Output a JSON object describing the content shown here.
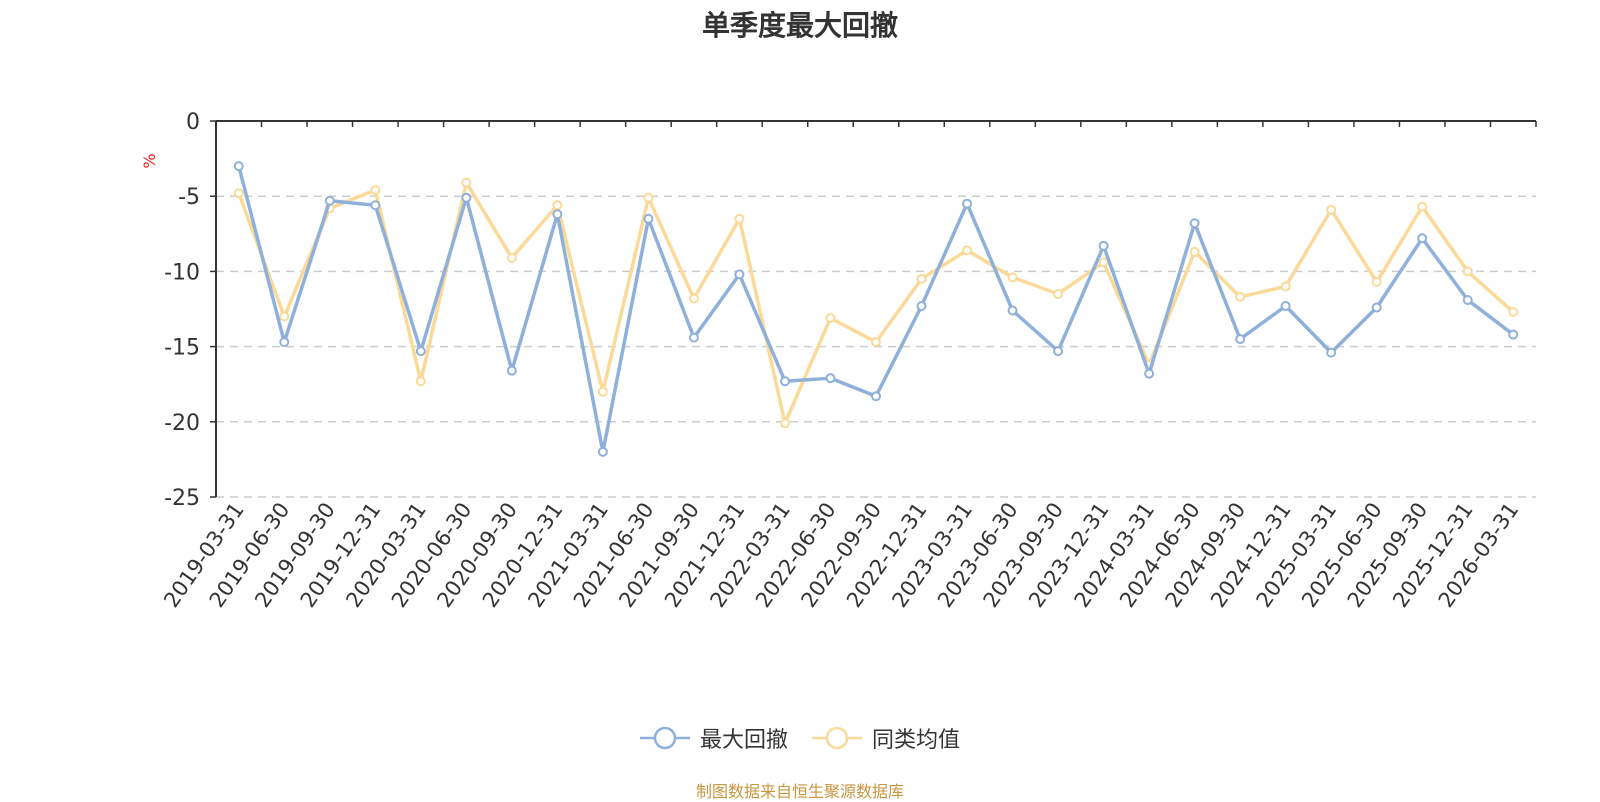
{
  "chart_data": {
    "type": "line",
    "title": "单季度最大回撤",
    "ylabel": "%",
    "ylim": [
      -25,
      0
    ],
    "yticks": [
      0,
      -5,
      -10,
      -15,
      -20,
      -25
    ],
    "grid": true,
    "legend_position": "bottom",
    "categories": [
      "2019-03-31",
      "2019-06-30",
      "2019-09-30",
      "2019-12-31",
      "2020-03-31",
      "2020-06-30",
      "2020-09-30",
      "2020-12-31",
      "2021-03-31",
      "2021-06-30",
      "2021-09-30",
      "2021-12-31",
      "2022-03-31",
      "2022-06-30",
      "2022-09-30",
      "2022-12-31",
      "2023-03-31",
      "2023-06-30",
      "2023-09-30",
      "2023-12-31",
      "2024-03-31",
      "2024-06-30",
      "2024-09-30",
      "2024-12-31",
      "2025-03-31",
      "2025-06-30",
      "2025-09-30",
      "2025-12-31",
      "2026-03-31"
    ],
    "series": [
      {
        "name": "最大回撤",
        "color": "#8fb0da",
        "values": [
          -3.0,
          -14.7,
          -5.3,
          -5.6,
          -15.3,
          -5.1,
          -16.6,
          -6.2,
          -22.0,
          -6.5,
          -14.4,
          -10.2,
          -17.3,
          -17.1,
          -18.3,
          -12.3,
          -5.5,
          -12.6,
          -15.3,
          -8.3,
          -16.8,
          -6.8,
          -14.5,
          -12.3,
          -15.4,
          -12.4,
          -7.8,
          -11.9,
          -14.2
        ]
      },
      {
        "name": "同类均值",
        "color": "#fbd999",
        "values": [
          -4.8,
          -13.0,
          -5.8,
          -4.6,
          -17.3,
          -4.1,
          -9.1,
          -5.6,
          -18.0,
          -5.1,
          -11.8,
          -6.5,
          -20.1,
          -13.1,
          -14.7,
          -10.5,
          -8.6,
          -10.4,
          -11.5,
          -9.4,
          -16.2,
          -8.7,
          -11.7,
          -11.0,
          -5.9,
          -10.7,
          -5.7,
          -10.0,
          -12.7
        ]
      }
    ]
  },
  "source_note": "制图数据来自恒生聚源数据库"
}
